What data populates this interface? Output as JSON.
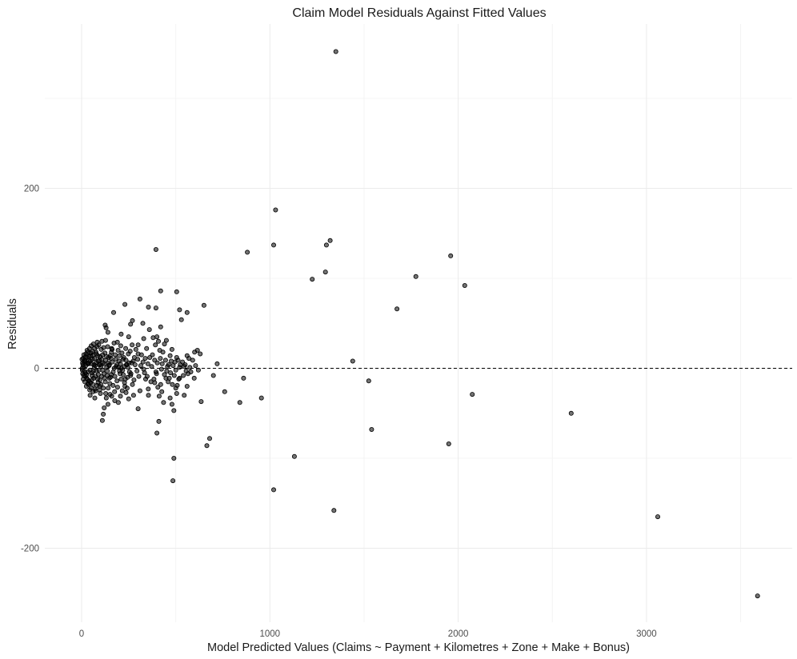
{
  "chart_data": {
    "type": "scatter",
    "title": "Claim Model Residuals Against Fitted Values",
    "xlabel": "Model Predicted Values (Claims ~ Payment + Kilometres + Zone + Make + Bonus)",
    "ylabel": "Residuals",
    "xlim": [
      -200,
      3700
    ],
    "ylim": [
      -280,
      360
    ],
    "x_ticks": [
      0,
      1000,
      2000,
      3000
    ],
    "y_ticks": [
      -200,
      0,
      200
    ],
    "grid": true,
    "reference_line": {
      "y": 0,
      "style": "dashed"
    },
    "points": [
      [
        1350,
        352
      ],
      [
        1030,
        176
      ],
      [
        1020,
        137
      ],
      [
        1300,
        137
      ],
      [
        1320,
        142
      ],
      [
        880,
        129
      ],
      [
        1960,
        125
      ],
      [
        1225,
        99
      ],
      [
        1295,
        107
      ],
      [
        1775,
        102
      ],
      [
        2035,
        92
      ],
      [
        1675,
        66
      ],
      [
        1440,
        8
      ],
      [
        1525,
        -14
      ],
      [
        2075,
        -29
      ],
      [
        1540,
        -68
      ],
      [
        1950,
        -84
      ],
      [
        2600,
        -50
      ],
      [
        3060,
        -165
      ],
      [
        3590,
        -253
      ],
      [
        1130,
        -98
      ],
      [
        1340,
        -158
      ],
      [
        1020,
        -135
      ],
      [
        860,
        -11
      ],
      [
        955,
        -33
      ],
      [
        840,
        -38
      ],
      [
        760,
        -26
      ],
      [
        680,
        -78
      ],
      [
        665,
        -86
      ],
      [
        490,
        -100
      ],
      [
        485,
        -125
      ],
      [
        400,
        -72
      ],
      [
        410,
        -59
      ],
      [
        395,
        132
      ],
      [
        650,
        70
      ],
      [
        505,
        85
      ],
      [
        420,
        86
      ],
      [
        615,
        20
      ],
      [
        630,
        16
      ],
      [
        560,
        62
      ],
      [
        520,
        65
      ],
      [
        530,
        54
      ],
      [
        230,
        71
      ],
      [
        170,
        62
      ],
      [
        310,
        77
      ],
      [
        355,
        68
      ],
      [
        395,
        67
      ],
      [
        325,
        50
      ],
      [
        270,
        53
      ],
      [
        260,
        49
      ],
      [
        330,
        33
      ],
      [
        360,
        43
      ],
      [
        300,
        26
      ],
      [
        250,
        35
      ],
      [
        210,
        38
      ],
      [
        190,
        29
      ],
      [
        160,
        22
      ],
      [
        140,
        40
      ],
      [
        125,
        48
      ],
      [
        130,
        45
      ],
      [
        420,
        46
      ],
      [
        440,
        27
      ],
      [
        450,
        31
      ],
      [
        480,
        21
      ],
      [
        470,
        14
      ],
      [
        415,
        20
      ],
      [
        380,
        34
      ],
      [
        400,
        35
      ],
      [
        345,
        22
      ],
      [
        300,
        16
      ],
      [
        280,
        12
      ],
      [
        265,
        6
      ],
      [
        240,
        4
      ],
      [
        220,
        10
      ],
      [
        200,
        14
      ],
      [
        560,
        14
      ],
      [
        545,
        2
      ],
      [
        520,
        1
      ],
      [
        505,
        12
      ],
      [
        500,
        -2
      ],
      [
        555,
        -3
      ],
      [
        600,
        18
      ],
      [
        620,
        -2
      ],
      [
        575,
        1
      ],
      [
        440,
        -7
      ],
      [
        420,
        -18
      ],
      [
        395,
        -4
      ],
      [
        460,
        -15
      ],
      [
        500,
        -22
      ],
      [
        505,
        -28
      ],
      [
        545,
        -30
      ],
      [
        560,
        -20
      ],
      [
        480,
        -40
      ],
      [
        490,
        -47
      ],
      [
        435,
        -38
      ],
      [
        405,
        -21
      ],
      [
        355,
        -30
      ],
      [
        340,
        -12
      ],
      [
        310,
        -25
      ],
      [
        300,
        -45
      ],
      [
        270,
        -18
      ],
      [
        260,
        -8
      ],
      [
        250,
        -34
      ],
      [
        230,
        -20
      ],
      [
        210,
        -12
      ],
      [
        195,
        -38
      ],
      [
        175,
        -26
      ],
      [
        160,
        -31
      ],
      [
        150,
        -17
      ],
      [
        140,
        -40
      ],
      [
        120,
        -44
      ],
      [
        110,
        -58
      ],
      [
        115,
        -51
      ],
      [
        100,
        -28
      ],
      [
        95,
        -20
      ],
      [
        85,
        -12
      ],
      [
        75,
        -25
      ],
      [
        70,
        -33
      ],
      [
        60,
        -18
      ],
      [
        55,
        -8
      ],
      [
        50,
        -22
      ],
      [
        45,
        -30
      ],
      [
        40,
        -14
      ],
      [
        35,
        -4
      ],
      [
        30,
        -12
      ],
      [
        25,
        -20
      ],
      [
        20,
        -9
      ],
      [
        15,
        -3
      ],
      [
        10,
        2
      ],
      [
        5,
        6
      ],
      [
        8,
        11
      ],
      [
        12,
        15
      ],
      [
        18,
        8
      ],
      [
        22,
        3
      ],
      [
        28,
        12
      ],
      [
        33,
        18
      ],
      [
        38,
        9
      ],
      [
        42,
        22
      ],
      [
        48,
        14
      ],
      [
        52,
        5
      ],
      [
        58,
        19
      ],
      [
        63,
        27
      ],
      [
        68,
        11
      ],
      [
        72,
        3
      ],
      [
        78,
        16
      ],
      [
        82,
        24
      ],
      [
        88,
        8
      ],
      [
        92,
        -2
      ],
      [
        98,
        13
      ],
      [
        104,
        21
      ],
      [
        108,
        30
      ],
      [
        113,
        6
      ],
      [
        118,
        -6
      ],
      [
        124,
        17
      ],
      [
        128,
        9
      ],
      [
        133,
        1
      ],
      [
        138,
        24
      ],
      [
        144,
        12
      ],
      [
        148,
        4
      ],
      [
        153,
        -10
      ],
      [
        158,
        18
      ],
      [
        163,
        7
      ],
      [
        168,
        -4
      ],
      [
        172,
        28
      ],
      [
        178,
        15
      ],
      [
        183,
        2
      ],
      [
        188,
        -14
      ],
      [
        194,
        20
      ],
      [
        198,
        8
      ],
      [
        204,
        -6
      ],
      [
        208,
        25
      ],
      [
        214,
        17
      ],
      [
        218,
        -2
      ],
      [
        224,
        12
      ],
      [
        228,
        -16
      ],
      [
        234,
        22
      ],
      [
        238,
        4
      ],
      [
        244,
        -10
      ],
      [
        248,
        16
      ],
      [
        254,
        -4
      ],
      [
        3,
        0
      ],
      [
        6,
        -6
      ],
      [
        9,
        -12
      ],
      [
        14,
        7
      ],
      [
        17,
        -15
      ],
      [
        21,
        13
      ],
      [
        26,
        -7
      ],
      [
        29,
        20
      ],
      [
        34,
        -17
      ],
      [
        37,
        5
      ],
      [
        43,
        -24
      ],
      [
        46,
        8
      ],
      [
        49,
        17
      ],
      [
        54,
        -13
      ],
      [
        57,
        10
      ],
      [
        61,
        -26
      ],
      [
        66,
        4
      ],
      [
        69,
        22
      ],
      [
        74,
        -9
      ],
      [
        77,
        6
      ],
      [
        81,
        -19
      ],
      [
        86,
        14
      ],
      [
        89,
        -7
      ],
      [
        94,
        9
      ],
      [
        97,
        -13
      ],
      [
        102,
        2
      ],
      [
        106,
        -9
      ],
      [
        111,
        15
      ],
      [
        116,
        -22
      ],
      [
        121,
        5
      ],
      [
        126,
        -15
      ],
      [
        131,
        -33
      ],
      [
        136,
        -8
      ],
      [
        141,
        -22
      ],
      [
        146,
        3
      ],
      [
        151,
        -29
      ],
      [
        156,
        11
      ],
      [
        2,
        10
      ],
      [
        4,
        -2
      ],
      [
        7,
        4
      ],
      [
        11,
        -8
      ],
      [
        16,
        9
      ],
      [
        19,
        -5
      ],
      [
        23,
        16
      ],
      [
        27,
        -11
      ],
      [
        31,
        6
      ],
      [
        36,
        -18
      ],
      [
        39,
        13
      ],
      [
        44,
        -2
      ],
      [
        47,
        -16
      ],
      [
        51,
        25
      ],
      [
        56,
        -5
      ],
      [
        59,
        14
      ],
      [
        64,
        -11
      ],
      [
        67,
        1
      ],
      [
        71,
        -23
      ],
      [
        76,
        18
      ],
      [
        79,
        -3
      ],
      [
        83,
        29
      ],
      [
        87,
        -16
      ],
      [
        91,
        26
      ],
      [
        96,
        -24
      ],
      [
        99,
        4
      ],
      [
        103,
        -18
      ],
      [
        107,
        10
      ],
      [
        112,
        -2
      ],
      [
        117,
        23
      ],
      [
        122,
        -11
      ],
      [
        127,
        31
      ],
      [
        132,
        13
      ],
      [
        137,
        -3
      ],
      [
        142,
        6
      ],
      [
        147,
        -11
      ],
      [
        152,
        14
      ],
      [
        157,
        -7
      ],
      [
        162,
        21
      ],
      [
        167,
        -19
      ],
      [
        173,
        0
      ],
      [
        177,
        -9
      ],
      [
        182,
        10
      ],
      [
        187,
        4
      ],
      [
        191,
        -21
      ],
      [
        196,
        1
      ],
      [
        201,
        -3
      ],
      [
        206,
        5
      ],
      [
        211,
        0
      ],
      [
        216,
        -25
      ],
      [
        221,
        -7
      ],
      [
        226,
        2
      ],
      [
        232,
        -12
      ],
      [
        236,
        9
      ],
      [
        242,
        -22
      ],
      [
        246,
        1
      ],
      [
        252,
        6
      ],
      [
        258,
        19
      ],
      [
        262,
        -6
      ],
      [
        268,
        26
      ],
      [
        274,
        8
      ],
      [
        278,
        -13
      ],
      [
        284,
        4
      ],
      [
        288,
        21
      ],
      [
        294,
        -3
      ],
      [
        298,
        10
      ],
      [
        304,
        -9
      ],
      [
        314,
        3
      ],
      [
        318,
        15
      ],
      [
        326,
        7
      ],
      [
        334,
        -5
      ],
      [
        338,
        11
      ],
      [
        348,
        -9
      ],
      [
        352,
        5
      ],
      [
        362,
        12
      ],
      [
        368,
        -15
      ],
      [
        372,
        2
      ],
      [
        376,
        15
      ],
      [
        384,
        -12
      ],
      [
        388,
        9
      ],
      [
        392,
        26
      ],
      [
        398,
        -6
      ],
      [
        402,
        6
      ],
      [
        408,
        30
      ],
      [
        412,
        -31
      ],
      [
        418,
        11
      ],
      [
        424,
        -1
      ],
      [
        428,
        5
      ],
      [
        432,
        18
      ],
      [
        446,
        9
      ],
      [
        452,
        -3
      ],
      [
        456,
        2
      ],
      [
        462,
        4
      ],
      [
        466,
        -11
      ],
      [
        472,
        -5
      ],
      [
        476,
        8
      ],
      [
        482,
        -18
      ],
      [
        486,
        3
      ],
      [
        492,
        -8
      ],
      [
        496,
        7
      ],
      [
        508,
        -19
      ],
      [
        512,
        9
      ],
      [
        516,
        -12
      ],
      [
        524,
        4
      ],
      [
        536,
        7
      ],
      [
        540,
        -8
      ],
      [
        550,
        4
      ],
      [
        565,
        -6
      ],
      [
        570,
        11
      ],
      [
        580,
        -4
      ],
      [
        590,
        9
      ],
      [
        598,
        -11
      ],
      [
        605,
        3
      ],
      [
        635,
        -37
      ],
      [
        700,
        -8
      ],
      [
        720,
        5
      ],
      [
        33,
        5
      ],
      [
        63,
        -3
      ],
      [
        93,
        4
      ],
      [
        128,
        -28
      ],
      [
        176,
        -36
      ],
      [
        206,
        -31
      ],
      [
        236,
        -27
      ],
      [
        276,
        -30
      ],
      [
        330,
        -1
      ],
      [
        354,
        -23
      ],
      [
        388,
        -16
      ],
      [
        426,
        -26
      ],
      [
        448,
        -11
      ],
      [
        470,
        -33
      ],
      [
        520,
        -11
      ]
    ]
  }
}
